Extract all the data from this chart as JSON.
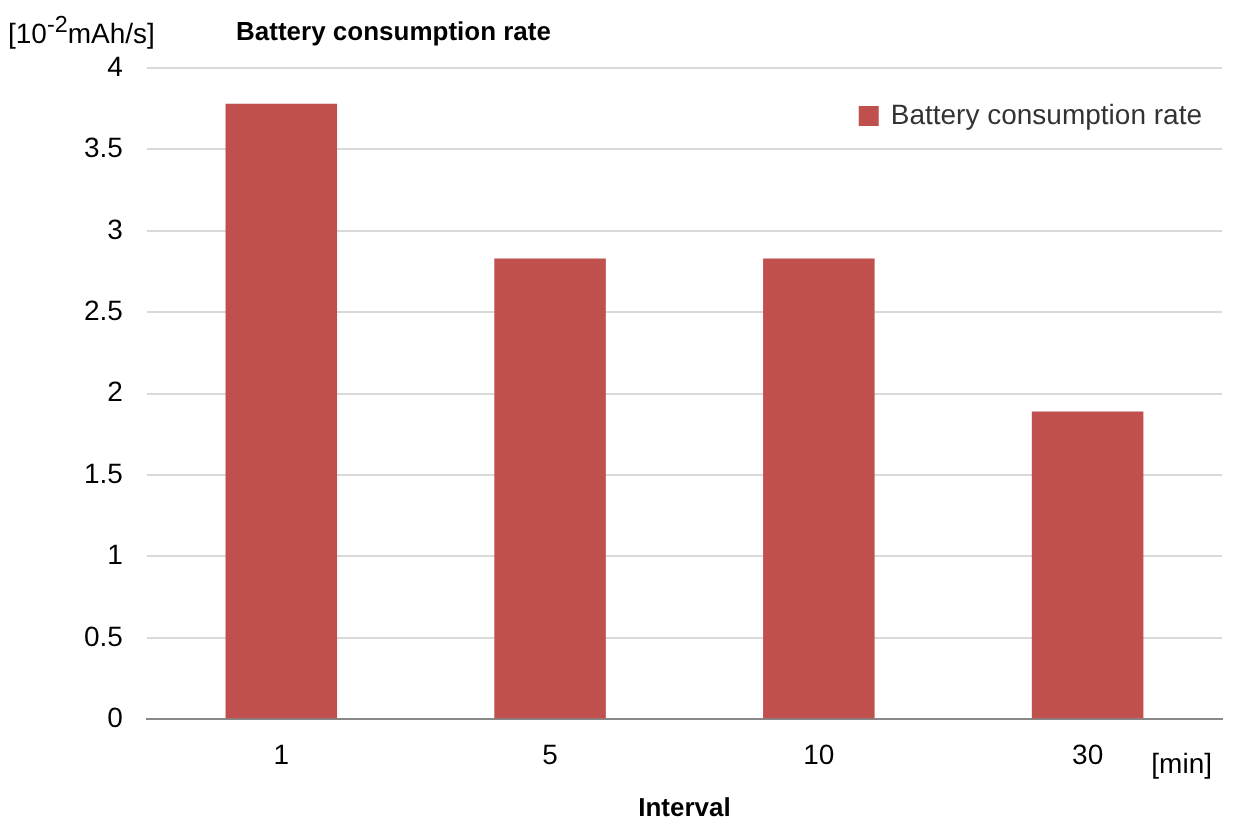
{
  "chart_data": {
    "type": "bar",
    "title": "Battery consumption rate",
    "ylabel": "[10$^{-2}$mAh/s]",
    "xlabel": "Interval",
    "annotations": [
      "[min]"
    ],
    "categories": [
      "1",
      "5",
      "10",
      "30"
    ],
    "series": [
      {
        "name": "Battery consumption rate",
        "color": "#c0504d",
        "values": [
          3.78,
          2.83,
          2.83,
          1.89
        ]
      }
    ],
    "ylim": [
      0,
      4
    ],
    "yticks": [
      0,
      0.5,
      1,
      1.5,
      2,
      2.5,
      3,
      3.5,
      4
    ],
    "grid": "y",
    "legend": "top right"
  }
}
